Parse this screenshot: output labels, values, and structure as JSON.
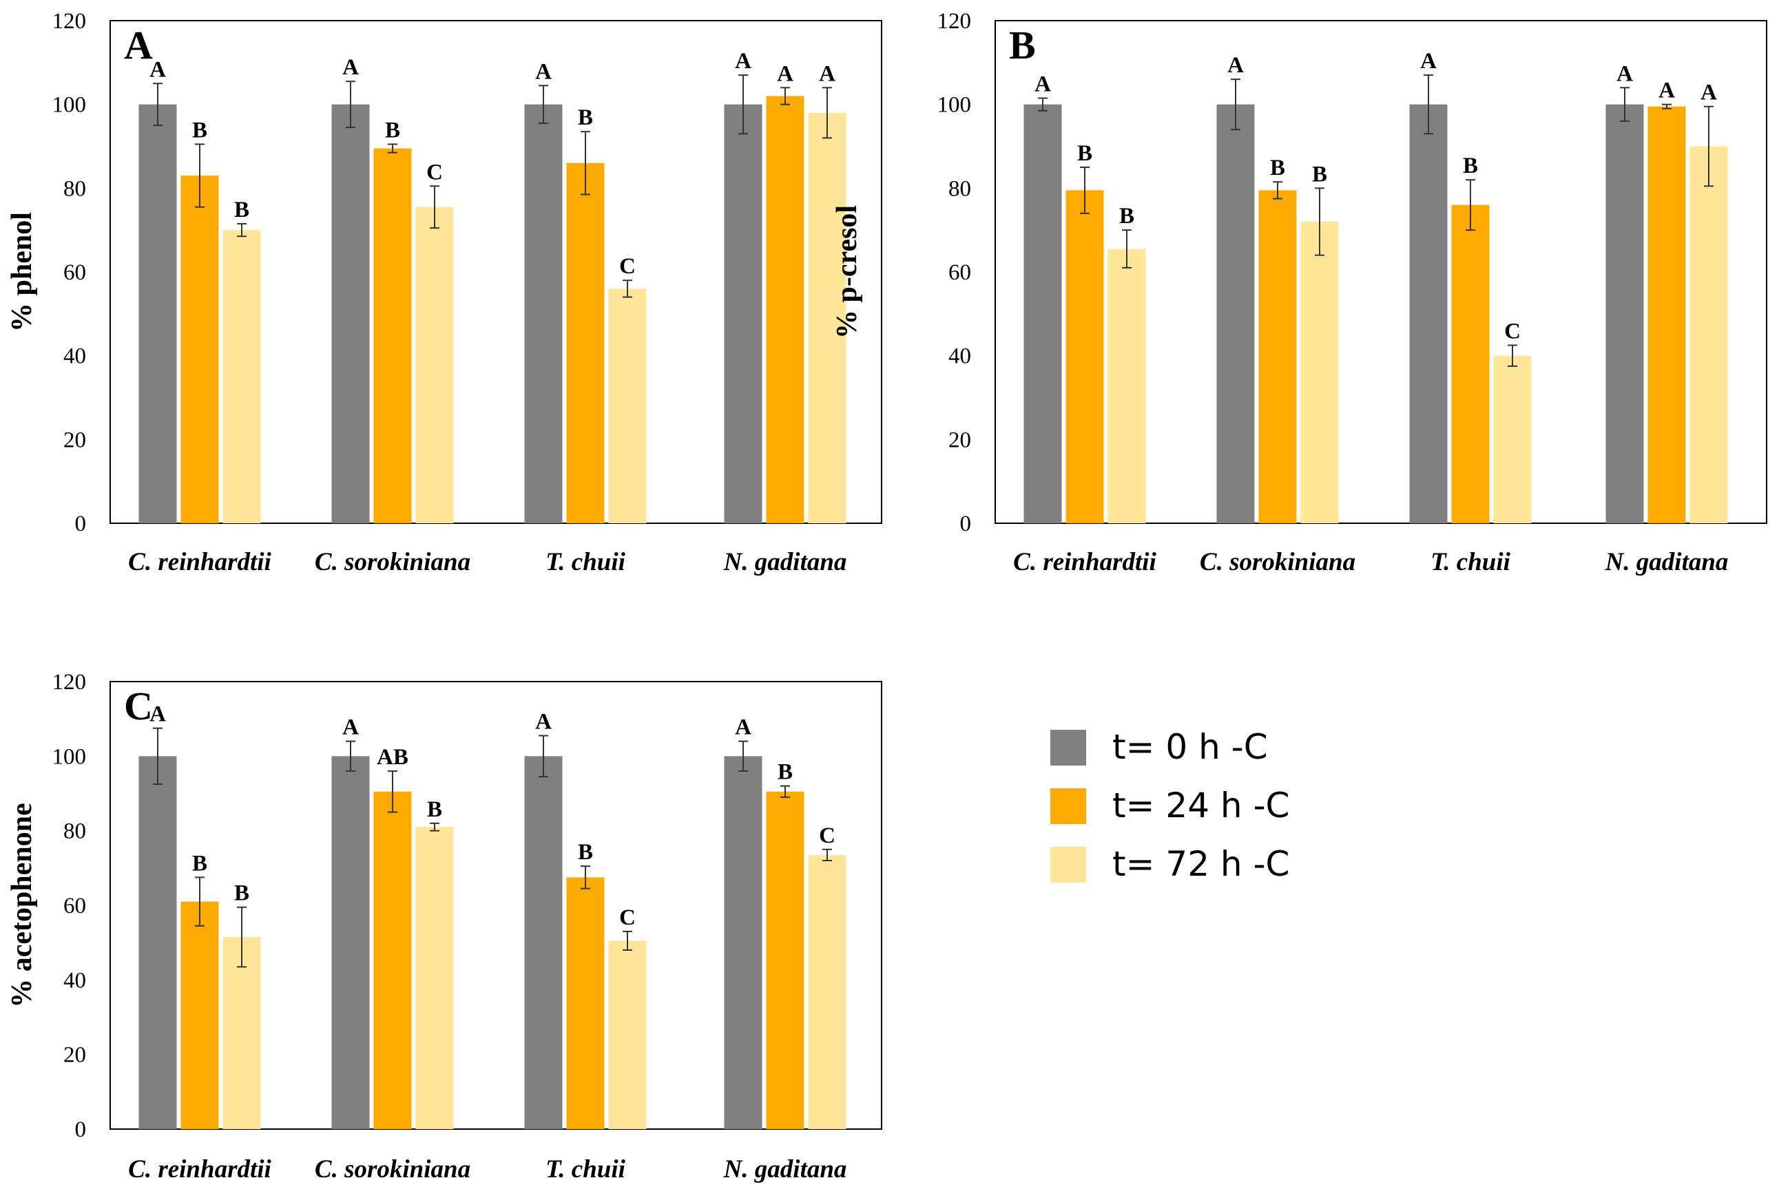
{
  "series_colors": [
    "#808080",
    "#FFAA00",
    "#FFE699"
  ],
  "legend": {
    "items": [
      "t= 0 h -C",
      "t= 24 h -C",
      "t= 72 h -C"
    ]
  },
  "chart_data": [
    {
      "panel": "A",
      "type": "bar",
      "ylabel": "% phenol",
      "ylim": [
        0,
        120
      ],
      "yticks": [
        "0",
        "20",
        "40",
        "60",
        "80",
        "100",
        "120"
      ],
      "categories": [
        "C. reinhardtii",
        "C. sorokiniana",
        "T. chuii",
        "N. gaditana"
      ],
      "series": [
        {
          "name": "t= 0 h -C",
          "values": [
            100,
            100,
            100,
            100
          ],
          "errors": [
            5,
            5.5,
            4.5,
            7
          ],
          "labels": [
            "A",
            "A",
            "A",
            "A"
          ]
        },
        {
          "name": "t= 24 h -C",
          "values": [
            83,
            89.5,
            86,
            102
          ],
          "errors": [
            7.5,
            1,
            7.5,
            2
          ],
          "labels": [
            "B",
            "B",
            "B",
            "A"
          ]
        },
        {
          "name": "t= 72 h -C",
          "values": [
            70,
            75.5,
            56,
            98
          ],
          "errors": [
            1.5,
            5,
            2,
            6
          ],
          "labels": [
            "B",
            "C",
            "C",
            "A"
          ]
        }
      ]
    },
    {
      "panel": "B",
      "type": "bar",
      "ylabel": "% p-cresol",
      "ylim": [
        0,
        120
      ],
      "yticks": [
        "0",
        "20",
        "40",
        "60",
        "80",
        "100",
        "120"
      ],
      "categories": [
        "C. reinhardtii",
        "C. sorokiniana",
        "T. chuii",
        "N. gaditana"
      ],
      "series": [
        {
          "name": "t= 0 h -C",
          "values": [
            100,
            100,
            100,
            100
          ],
          "errors": [
            1.5,
            6,
            7,
            4
          ],
          "labels": [
            "A",
            "A",
            "A",
            "A"
          ]
        },
        {
          "name": "t= 24 h -C",
          "values": [
            79.5,
            79.5,
            76,
            99.5
          ],
          "errors": [
            5.5,
            2,
            6,
            0.5
          ],
          "labels": [
            "B",
            "B",
            "B",
            "A"
          ]
        },
        {
          "name": "t= 72 h -C",
          "values": [
            65.5,
            72,
            40,
            90
          ],
          "errors": [
            4.5,
            8,
            2.5,
            9.5
          ],
          "labels": [
            "B",
            "B",
            "C",
            "A"
          ]
        }
      ]
    },
    {
      "panel": "C",
      "type": "bar",
      "ylabel": "% acetophenone",
      "ylim": [
        0,
        120
      ],
      "yticks": [
        "0",
        "20",
        "40",
        "60",
        "80",
        "100",
        "120"
      ],
      "categories": [
        "C. reinhardtii",
        "C. sorokiniana",
        "T. chuii",
        "N. gaditana"
      ],
      "series": [
        {
          "name": "t= 0 h -C",
          "values": [
            100,
            100,
            100,
            100
          ],
          "errors": [
            7.5,
            4,
            5.5,
            4
          ],
          "labels": [
            "A",
            "A",
            "A",
            "A"
          ]
        },
        {
          "name": "t= 24 h -C",
          "values": [
            61,
            90.5,
            67.5,
            90.5
          ],
          "errors": [
            6.5,
            5.5,
            3,
            1.5
          ],
          "labels": [
            "B",
            "AB",
            "B",
            "B"
          ]
        },
        {
          "name": "t= 72 h -C",
          "values": [
            51.5,
            81,
            50.5,
            73.5
          ],
          "errors": [
            8,
            1,
            2.5,
            1.5
          ],
          "labels": [
            "B",
            "B",
            "C",
            "C"
          ]
        }
      ]
    }
  ]
}
